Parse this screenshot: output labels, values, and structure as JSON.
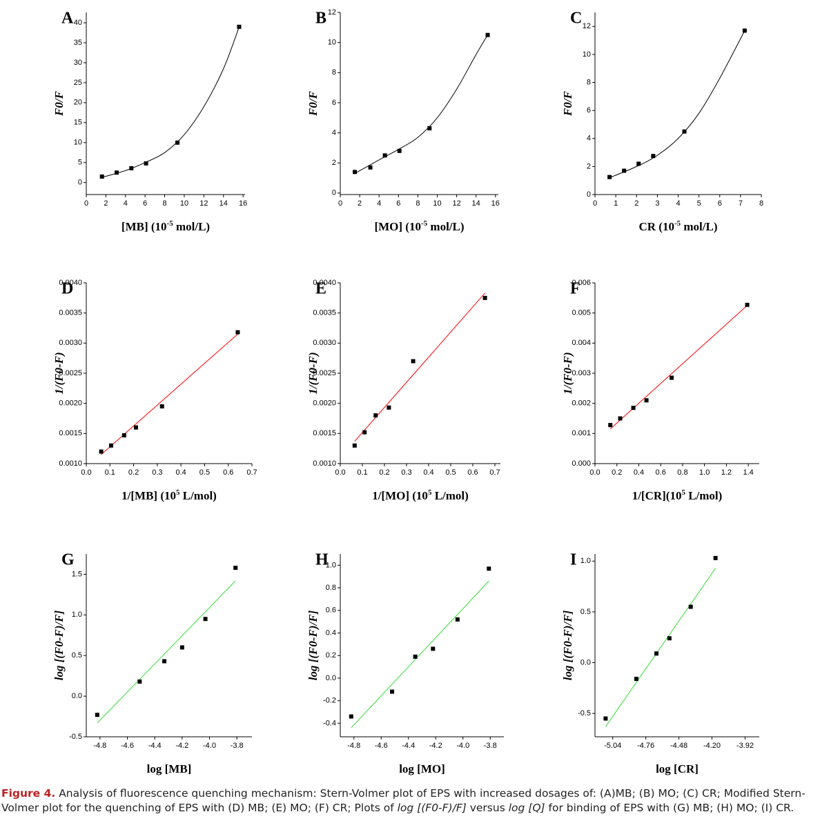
{
  "chart_data": [
    {
      "type": "scatter",
      "letter": "A",
      "ylabel": "F0/F",
      "xlabel": [
        "[MB] (10",
        "-5",
        " mol/L)"
      ],
      "xlim": [
        0,
        16.2
      ],
      "ylim": [
        -3,
        42.6
      ],
      "xticks": [
        0,
        2,
        4,
        6,
        8,
        10,
        12,
        14,
        16
      ],
      "yticks": [
        0,
        5,
        10,
        15,
        20,
        25,
        30,
        35,
        40
      ],
      "x": [
        1.6,
        3.1,
        4.6,
        6.1,
        9.3,
        15.6
      ],
      "values": [
        1.5,
        2.5,
        3.6,
        4.8,
        10,
        39
      ],
      "color": "#000000",
      "fit": {
        "x": [
          1.6,
          4,
          6,
          8,
          10,
          12,
          14,
          15.6
        ],
        "values": [
          1.3,
          3,
          5,
          7.5,
          12,
          19,
          28.5,
          39
        ],
        "color": "#000000"
      }
    },
    {
      "type": "scatter",
      "letter": "B",
      "ylabel": "F0/F",
      "xlabel": [
        "[MO] (10",
        "-5",
        " mol/L)"
      ],
      "xlim": [
        0,
        16.3
      ],
      "ylim": [
        -0.1,
        12
      ],
      "xticks": [
        0,
        2,
        4,
        6,
        8,
        10,
        12,
        14,
        16
      ],
      "yticks": [
        0,
        2,
        4,
        6,
        8,
        10,
        12
      ],
      "x": [
        1.5,
        3.1,
        4.6,
        6.1,
        9.2,
        15.2
      ],
      "values": [
        1.4,
        1.7,
        2.5,
        2.8,
        4.3,
        10.5
      ],
      "color": "#000000",
      "fit": {
        "x": [
          1.5,
          4,
          6,
          8,
          10,
          12,
          14,
          15.2
        ],
        "values": [
          1.3,
          2.2,
          2.9,
          3.7,
          5,
          6.9,
          9.2,
          10.5
        ],
        "color": "#000000"
      }
    },
    {
      "type": "scatter",
      "letter": "C",
      "ylabel": "F0/F",
      "xlabel": [
        "CR (10",
        "-5",
        " mol/L)"
      ],
      "xlim": [
        0,
        8
      ],
      "ylim": [
        0,
        13
      ],
      "xticks": [
        0,
        1,
        2,
        3,
        4,
        5,
        6,
        7,
        8
      ],
      "yticks": [
        0,
        2,
        4,
        6,
        8,
        10,
        12
      ],
      "x": [
        0.7,
        1.4,
        2.1,
        2.8,
        4.3,
        7.2
      ],
      "values": [
        1.25,
        1.7,
        2.2,
        2.75,
        4.5,
        11.7
      ],
      "color": "#000000",
      "fit": {
        "x": [
          0.7,
          2,
          3,
          4,
          5,
          6,
          7.2
        ],
        "values": [
          1.2,
          2,
          2.8,
          4,
          5.8,
          8.3,
          11.7
        ],
        "color": "#000000"
      }
    },
    {
      "type": "scatter",
      "letter": "D",
      "ylabel": "1/(F0-F)",
      "xlabel": [
        "1/[MB] (10",
        "5",
        " L/mol)"
      ],
      "xlim": [
        0,
        0.7
      ],
      "ylim": [
        0.001,
        0.004
      ],
      "xticks": [
        {
          "value": 0,
          "label": "0.0"
        },
        0.1,
        0.2,
        0.3,
        0.4,
        0.5,
        0.6,
        0.7
      ],
      "yticks": [
        {
          "value": 0.001,
          "label": "0.0010"
        },
        {
          "value": 0.0015,
          "label": "0.0015"
        },
        {
          "value": 0.002,
          "label": "0.0020"
        },
        {
          "value": 0.0025,
          "label": "0.0025"
        },
        {
          "value": 0.003,
          "label": "0.0030"
        },
        {
          "value": 0.0035,
          "label": "0.0035"
        },
        {
          "value": 0.004,
          "label": "0.0040"
        }
      ],
      "x": [
        0.063,
        0.105,
        0.16,
        0.21,
        0.32,
        0.64
      ],
      "values": [
        0.0012,
        0.0013,
        0.00147,
        0.0016,
        0.00195,
        0.00318
      ],
      "color": "#000000",
      "fit": {
        "x": [
          0.063,
          0.64
        ],
        "values": [
          0.00115,
          0.00315
        ],
        "color": "#ff0000"
      }
    },
    {
      "type": "scatter",
      "letter": "E",
      "ylabel": "1/(F0-F)",
      "xlabel": [
        "1/[MO] (10",
        "5",
        " L/mol)"
      ],
      "xlim": [
        0,
        0.725
      ],
      "ylim": [
        0.001,
        0.004
      ],
      "xticks": [
        {
          "value": 0,
          "label": "0.0"
        },
        0.1,
        0.2,
        0.3,
        0.4,
        0.5,
        0.6,
        0.7
      ],
      "yticks": [
        {
          "value": 0.001,
          "label": "0.0010"
        },
        {
          "value": 0.0015,
          "label": "0.0015"
        },
        {
          "value": 0.002,
          "label": "0.0020"
        },
        {
          "value": 0.0025,
          "label": "0.0025"
        },
        {
          "value": 0.003,
          "label": "0.0030"
        },
        {
          "value": 0.0035,
          "label": "0.0035"
        },
        {
          "value": 0.004,
          "label": "0.0040"
        }
      ],
      "x": [
        0.065,
        0.11,
        0.16,
        0.22,
        0.33,
        0.655
      ],
      "values": [
        0.0013,
        0.00152,
        0.0018,
        0.00193,
        0.0027,
        0.00375
      ],
      "color": "#000000",
      "fit": {
        "x": [
          0.065,
          0.655
        ],
        "values": [
          0.00137,
          0.00383
        ],
        "color": "#ff0000"
      }
    },
    {
      "type": "scatter",
      "letter": "F",
      "ylabel": "1/(F0-F)",
      "xlabel": [
        "1/[CR](10",
        "5",
        " L/mol)"
      ],
      "xlim": [
        0,
        1.5
      ],
      "ylim": [
        0,
        0.006
      ],
      "xticks": [
        {
          "value": 0,
          "label": "0.0"
        },
        0.2,
        0.4,
        0.6,
        0.8,
        {
          "value": 1,
          "label": "1.0"
        },
        1.2,
        1.4
      ],
      "yticks": [
        {
          "value": 0,
          "label": "0.000"
        },
        {
          "value": 0.001,
          "label": "0.001"
        },
        {
          "value": 0.002,
          "label": "0.002"
        },
        {
          "value": 0.003,
          "label": "0.003"
        },
        {
          "value": 0.004,
          "label": "0.004"
        },
        {
          "value": 0.005,
          "label": "0.005"
        },
        {
          "value": 0.006,
          "label": "0.006"
        }
      ],
      "x": [
        0.14,
        0.23,
        0.35,
        0.47,
        0.7,
        1.39
      ],
      "values": [
        0.00128,
        0.0015,
        0.00185,
        0.0021,
        0.00285,
        0.00527
      ],
      "color": "#000000",
      "fit": {
        "x": [
          0.14,
          1.39
        ],
        "values": [
          0.00115,
          0.00525
        ],
        "color": "#ff0000"
      }
    },
    {
      "type": "scatter",
      "letter": "G",
      "ylabel": "log [(F0-F)/F]",
      "xlabel": [
        "log [MB]"
      ],
      "xlim": [
        -4.9,
        -3.69
      ],
      "ylim": [
        -0.5,
        1.75
      ],
      "xticks": [
        -4.8,
        -4.6,
        -4.4,
        -4.2,
        {
          "value": -4,
          "label": "-4.0"
        },
        -3.8
      ],
      "yticks": [
        -0.5,
        {
          "value": 0,
          "label": "0.0"
        },
        0.5,
        {
          "value": 1,
          "label": "1.0"
        },
        1.5
      ],
      "x": [
        -4.82,
        -4.51,
        -4.33,
        -4.2,
        -4.03,
        -3.81
      ],
      "values": [
        -0.23,
        0.18,
        0.43,
        0.6,
        0.95,
        1.58
      ],
      "color": "#000000",
      "fit": {
        "x": [
          -4.82,
          -3.81
        ],
        "values": [
          -0.33,
          1.42
        ],
        "color": "#33dd33"
      }
    },
    {
      "type": "scatter",
      "letter": "H",
      "ylabel": "log [(F0-F)/F]",
      "xlabel": [
        "log [MO]"
      ],
      "xlim": [
        -4.9,
        -3.7
      ],
      "ylim": [
        -0.52,
        1.1
      ],
      "xticks": [
        -4.8,
        -4.6,
        -4.4,
        -4.2,
        {
          "value": -4,
          "label": "-4.0"
        },
        -3.8
      ],
      "yticks": [
        -0.4,
        -0.2,
        {
          "value": 0,
          "label": "0.0"
        },
        0.2,
        0.4,
        0.6,
        0.8,
        {
          "value": 1,
          "label": "1.0"
        }
      ],
      "x": [
        -4.82,
        -4.52,
        -4.35,
        -4.22,
        -4.04,
        -3.81
      ],
      "values": [
        -0.34,
        -0.12,
        0.19,
        0.26,
        0.52,
        0.97
      ],
      "color": "#000000",
      "fit": {
        "x": [
          -4.82,
          -3.81
        ],
        "values": [
          -0.44,
          0.86
        ],
        "color": "#33dd33"
      }
    },
    {
      "type": "scatter",
      "letter": "I",
      "ylabel": "log [(F0-F)/F]",
      "xlabel": [
        "log [CR]"
      ],
      "xlim": [
        -5.19,
        -3.8
      ],
      "ylim": [
        -0.73,
        1.07
      ],
      "xticks": [
        -5.04,
        -4.76,
        -4.48,
        {
          "value": -4.2,
          "label": "-4.20"
        },
        -3.92
      ],
      "yticks": [
        -0.5,
        {
          "value": 0,
          "label": "0.0"
        },
        0.5,
        {
          "value": 1,
          "label": "1.0"
        }
      ],
      "x": [
        -5.1,
        -4.84,
        -4.67,
        -4.56,
        -4.38,
        -4.17
      ],
      "values": [
        -0.55,
        -0.16,
        0.09,
        0.24,
        0.55,
        1.03
      ],
      "color": "#000000",
      "fit": {
        "x": [
          -5.1,
          -4.17
        ],
        "values": [
          -0.63,
          0.93
        ],
        "color": "#33dd33"
      }
    }
  ],
  "caption": {
    "label": "Figure 4.",
    "parts": [
      {
        "text": " Analysis of fluorescence quenching mechanism: Stern-Volmer plot of EPS with increased dosages of: (A)MB; (B) MO; (C) CR; Modified Stern-Volmer plot for the quenching of EPS with (D) MB; (E) MO; (F) CR; Plots of ",
        "italic": false
      },
      {
        "text": "log [(F0-F)/F]",
        "italic": true
      },
      {
        "text": " versus ",
        "italic": false
      },
      {
        "text": "log [Q]",
        "italic": true
      },
      {
        "text": " for binding of EPS with (G) MB; (H) MO; (I) CR.",
        "italic": false
      }
    ]
  }
}
